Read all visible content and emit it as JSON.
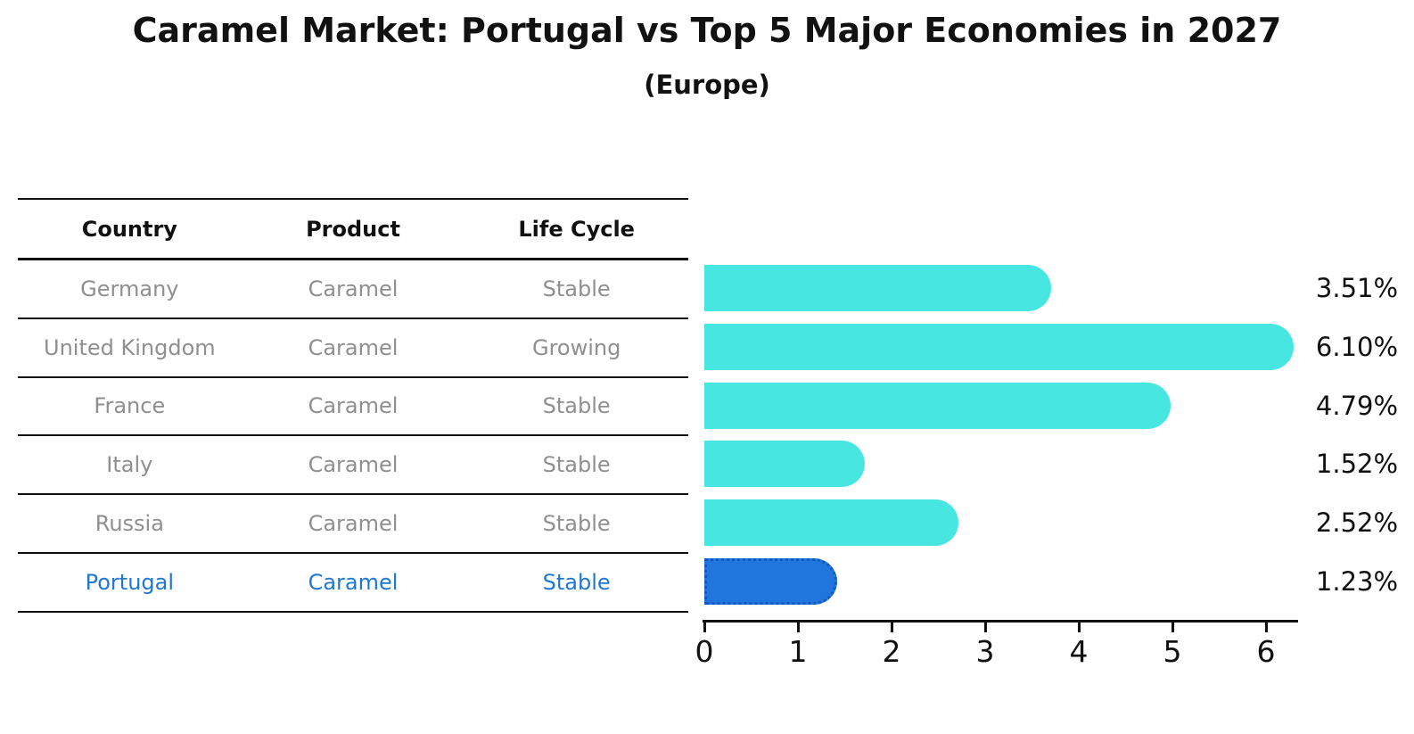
{
  "title": "Caramel Market: Portugal vs Top 5 Major Economies in 2027",
  "subtitle": "(Europe)",
  "colors": {
    "bar_cyan": "#48e6e0",
    "bar_blue": "#2176dd",
    "bar_blue_border": "#1257c4",
    "text_black": "#111111",
    "text_gray": "#8f8f8f",
    "text_blue": "#1f77d4",
    "line_black": "#111111"
  },
  "table": {
    "headers": [
      "Country",
      "Product",
      "Life Cycle"
    ],
    "rows": [
      {
        "country": "Germany",
        "product": "Caramel",
        "life_cycle": "Stable",
        "highlight": false
      },
      {
        "country": "United Kingdom",
        "product": "Caramel",
        "life_cycle": "Growing",
        "highlight": false
      },
      {
        "country": "France",
        "product": "Caramel",
        "life_cycle": "Stable",
        "highlight": false
      },
      {
        "country": "Italy",
        "product": "Caramel",
        "life_cycle": "Stable",
        "highlight": false
      },
      {
        "country": "Russia",
        "product": "Caramel",
        "life_cycle": "Stable",
        "highlight": false
      },
      {
        "country": "Portugal",
        "product": "Caramel",
        "life_cycle": "Stable",
        "highlight": true
      }
    ]
  },
  "chart_data": {
    "type": "bar",
    "orientation": "horizontal",
    "title": "Caramel Market: Portugal vs Top 5 Major Economies in 2027",
    "subtitle": "(Europe)",
    "categories": [
      "Germany",
      "United Kingdom",
      "France",
      "Italy",
      "Russia",
      "Portugal"
    ],
    "values": [
      3.51,
      6.1,
      4.79,
      1.52,
      2.52,
      1.23
    ],
    "value_labels": [
      "3.51%",
      "6.10%",
      "4.79%",
      "1.52%",
      "2.52%",
      "1.23%"
    ],
    "x_ticks": [
      "0",
      "1",
      "2",
      "3",
      "4",
      "5",
      "6"
    ],
    "xlim": [
      0,
      6.35
    ],
    "xlabel": "",
    "ylabel": "",
    "grid": false,
    "legend": false,
    "highlight_index": 5
  }
}
